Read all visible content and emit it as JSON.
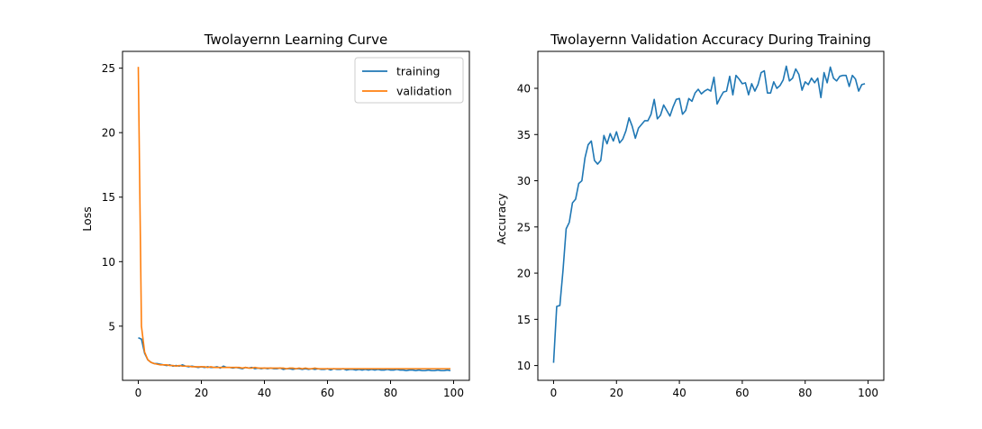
{
  "chart_data": [
    {
      "type": "line",
      "title": "Twolayernn Learning Curve",
      "xlabel": "",
      "ylabel": "Loss",
      "xlim": [
        -5,
        105
      ],
      "ylim": [
        0.8,
        26.3
      ],
      "xticks": [
        0,
        20,
        40,
        60,
        80,
        100
      ],
      "yticks": [
        5,
        10,
        15,
        20,
        25
      ],
      "legend": "top-right",
      "series": [
        {
          "name": "training",
          "color": "#1f77b4",
          "x": [
            0,
            1,
            2,
            3,
            4,
            5,
            6,
            7,
            8,
            9,
            10,
            11,
            12,
            13,
            14,
            15,
            16,
            17,
            18,
            19,
            20,
            21,
            22,
            23,
            24,
            25,
            26,
            27,
            28,
            29,
            30,
            31,
            32,
            33,
            34,
            35,
            36,
            37,
            38,
            39,
            40,
            41,
            42,
            43,
            44,
            45,
            46,
            47,
            48,
            49,
            50,
            51,
            52,
            53,
            54,
            55,
            56,
            57,
            58,
            59,
            60,
            61,
            62,
            63,
            64,
            65,
            66,
            67,
            68,
            69,
            70,
            71,
            72,
            73,
            74,
            75,
            76,
            77,
            78,
            79,
            80,
            81,
            82,
            83,
            84,
            85,
            86,
            87,
            88,
            89,
            90,
            91,
            92,
            93,
            94,
            95,
            96,
            97,
            98,
            99
          ],
          "values": [
            4.1,
            4.0,
            2.9,
            2.4,
            2.2,
            2.1,
            2.1,
            2.05,
            2.0,
            1.95,
            2.0,
            1.9,
            1.95,
            1.9,
            2.0,
            1.9,
            1.85,
            1.9,
            1.85,
            1.8,
            1.85,
            1.8,
            1.85,
            1.8,
            1.8,
            1.85,
            1.75,
            1.9,
            1.8,
            1.8,
            1.75,
            1.8,
            1.75,
            1.7,
            1.8,
            1.75,
            1.8,
            1.7,
            1.75,
            1.7,
            1.75,
            1.7,
            1.75,
            1.7,
            1.7,
            1.75,
            1.65,
            1.7,
            1.7,
            1.65,
            1.7,
            1.7,
            1.65,
            1.7,
            1.65,
            1.7,
            1.65,
            1.7,
            1.65,
            1.65,
            1.7,
            1.6,
            1.7,
            1.65,
            1.65,
            1.7,
            1.6,
            1.65,
            1.65,
            1.6,
            1.65,
            1.6,
            1.65,
            1.6,
            1.65,
            1.6,
            1.65,
            1.6,
            1.6,
            1.65,
            1.6,
            1.6,
            1.65,
            1.6,
            1.6,
            1.55,
            1.6,
            1.6,
            1.55,
            1.6,
            1.55,
            1.55,
            1.6,
            1.55,
            1.55,
            1.6,
            1.55,
            1.55,
            1.6,
            1.55
          ]
        },
        {
          "name": "validation",
          "color": "#ff7f0e",
          "x": [
            0,
            1,
            2,
            3,
            4,
            5,
            6,
            7,
            8,
            9,
            10,
            11,
            12,
            13,
            14,
            15,
            16,
            17,
            18,
            19,
            20,
            21,
            22,
            23,
            24,
            25,
            26,
            27,
            28,
            29,
            30,
            31,
            32,
            33,
            34,
            35,
            36,
            37,
            38,
            39,
            40,
            41,
            42,
            43,
            44,
            45,
            46,
            47,
            48,
            49,
            50,
            51,
            52,
            53,
            54,
            55,
            56,
            57,
            58,
            59,
            60,
            61,
            62,
            63,
            64,
            65,
            66,
            67,
            68,
            69,
            70,
            71,
            72,
            73,
            74,
            75,
            76,
            77,
            78,
            79,
            80,
            81,
            82,
            83,
            84,
            85,
            86,
            87,
            88,
            89,
            90,
            91,
            92,
            93,
            94,
            95,
            96,
            97,
            98,
            99
          ],
          "values": [
            25.1,
            5.0,
            3.0,
            2.4,
            2.2,
            2.1,
            2.05,
            2.0,
            2.0,
            2.0,
            1.95,
            1.95,
            1.9,
            1.95,
            1.9,
            1.9,
            1.9,
            1.85,
            1.85,
            1.85,
            1.85,
            1.85,
            1.8,
            1.85,
            1.8,
            1.8,
            1.8,
            1.8,
            1.8,
            1.8,
            1.8,
            1.8,
            1.8,
            1.75,
            1.8,
            1.75,
            1.75,
            1.8,
            1.75,
            1.75,
            1.75,
            1.75,
            1.75,
            1.75,
            1.75,
            1.75,
            1.75,
            1.7,
            1.75,
            1.75,
            1.7,
            1.75,
            1.7,
            1.75,
            1.7,
            1.7,
            1.75,
            1.7,
            1.7,
            1.7,
            1.7,
            1.7,
            1.7,
            1.7,
            1.7,
            1.7,
            1.7,
            1.7,
            1.7,
            1.7,
            1.7,
            1.7,
            1.7,
            1.7,
            1.7,
            1.7,
            1.7,
            1.7,
            1.7,
            1.7,
            1.7,
            1.7,
            1.7,
            1.7,
            1.7,
            1.7,
            1.7,
            1.7,
            1.7,
            1.7,
            1.7,
            1.7,
            1.7,
            1.7,
            1.7,
            1.7,
            1.7,
            1.7,
            1.7,
            1.7
          ]
        }
      ]
    },
    {
      "type": "line",
      "title": "Twolayernn Validation Accuracy During Training",
      "xlabel": "",
      "ylabel": "Accuracy",
      "xlim": [
        -5,
        105
      ],
      "ylim": [
        8.4,
        44.0
      ],
      "xticks": [
        0,
        20,
        40,
        60,
        80,
        100
      ],
      "yticks": [
        10,
        15,
        20,
        25,
        30,
        35,
        40
      ],
      "legend": "none",
      "series": [
        {
          "color": "#1f77b4",
          "x": [
            0,
            1,
            2,
            3,
            4,
            5,
            6,
            7,
            8,
            9,
            10,
            11,
            12,
            13,
            14,
            15,
            16,
            17,
            18,
            19,
            20,
            21,
            22,
            23,
            24,
            25,
            26,
            27,
            28,
            29,
            30,
            31,
            32,
            33,
            34,
            35,
            36,
            37,
            38,
            39,
            40,
            41,
            42,
            43,
            44,
            45,
            46,
            47,
            48,
            49,
            50,
            51,
            52,
            53,
            54,
            55,
            56,
            57,
            58,
            59,
            60,
            61,
            62,
            63,
            64,
            65,
            66,
            67,
            68,
            69,
            70,
            71,
            72,
            73,
            74,
            75,
            76,
            77,
            78,
            79,
            80,
            81,
            82,
            83,
            84,
            85,
            86,
            87,
            88,
            89,
            90,
            91,
            92,
            93,
            94,
            95,
            96,
            97,
            98,
            99
          ],
          "values": [
            10.3,
            16.4,
            16.5,
            20.3,
            24.8,
            25.5,
            27.6,
            28.0,
            29.7,
            30.0,
            32.5,
            33.9,
            34.3,
            32.2,
            31.8,
            32.2,
            34.9,
            34.0,
            35.1,
            34.3,
            35.3,
            34.1,
            34.5,
            35.4,
            36.8,
            35.9,
            34.6,
            35.7,
            36.1,
            36.5,
            36.5,
            37.2,
            38.8,
            36.7,
            37.1,
            38.2,
            37.6,
            37.0,
            38.0,
            38.8,
            38.9,
            37.2,
            37.6,
            38.9,
            38.6,
            39.5,
            39.9,
            39.4,
            39.7,
            39.9,
            39.7,
            41.2,
            38.3,
            39.0,
            39.6,
            39.7,
            41.3,
            39.3,
            41.4,
            41.0,
            40.5,
            40.6,
            39.3,
            40.5,
            39.7,
            40.4,
            41.7,
            41.9,
            39.5,
            39.5,
            40.7,
            40.0,
            40.3,
            40.9,
            42.4,
            40.8,
            41.1,
            42.1,
            41.5,
            39.8,
            40.7,
            40.4,
            41.1,
            40.6,
            41.1,
            39.0,
            41.7,
            40.6,
            42.3,
            41.1,
            40.8,
            41.3,
            41.4,
            41.4,
            40.2,
            41.4,
            41.0,
            39.7,
            40.4,
            40.5
          ]
        }
      ]
    }
  ]
}
